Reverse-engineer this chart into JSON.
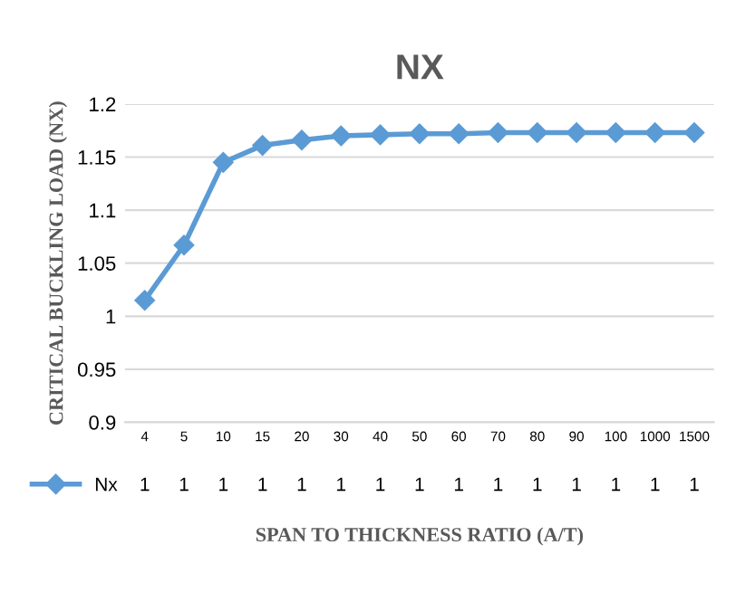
{
  "chart_data": {
    "type": "line",
    "title": "NX",
    "xlabel": "SPAN TO THICKNESS RATIO (A/T)",
    "ylabel": "CRITICAL BUCKLING LOAD (NX)",
    "categories": [
      "4",
      "5",
      "10",
      "15",
      "20",
      "30",
      "40",
      "50",
      "60",
      "70",
      "80",
      "90",
      "100",
      "1000",
      "1500"
    ],
    "series": [
      {
        "name": "Nx",
        "color": "#5b9bd5",
        "values": [
          1.015,
          1.067,
          1.145,
          1.161,
          1.166,
          1.17,
          1.171,
          1.172,
          1.172,
          1.173,
          1.173,
          1.173,
          1.173,
          1.173,
          1.173
        ],
        "value_labels": [
          "1",
          "1",
          "1",
          "1",
          "1",
          "1",
          "1",
          "1",
          "1",
          "1",
          "1",
          "1",
          "1",
          "1",
          "1"
        ]
      }
    ],
    "ylim": [
      0.9,
      1.2
    ],
    "yticks": [
      {
        "value": 0.9,
        "label": "0.9"
      },
      0.95,
      {
        "value": 1.0,
        "label": "1"
      },
      1.05,
      {
        "value": 1.1,
        "label": "1.1"
      },
      1.15,
      {
        "value": 1.2,
        "label": "1.2"
      }
    ],
    "grid": "y",
    "legend": "bottom",
    "marker": "diamond",
    "line_style": "solid"
  }
}
